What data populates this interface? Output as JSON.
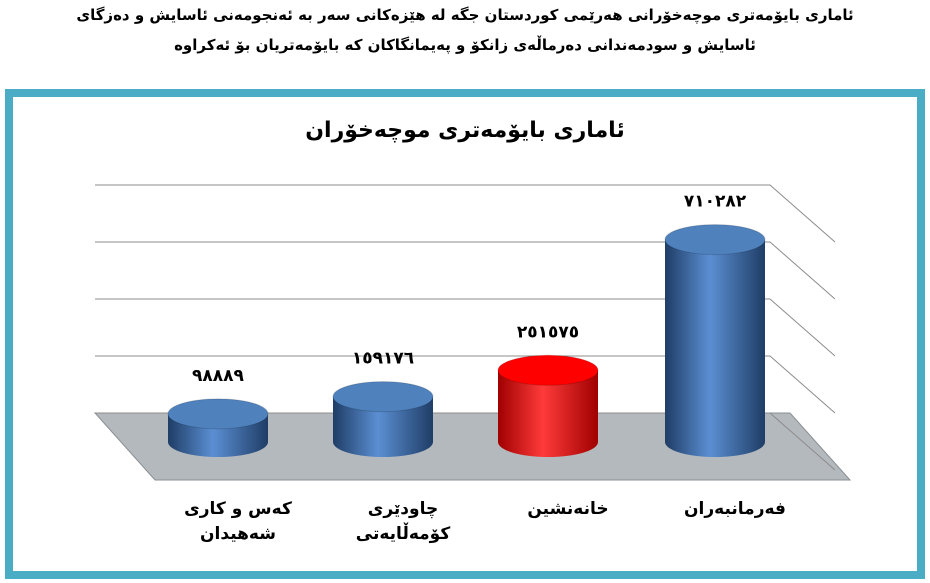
{
  "header": {
    "lines": [
      "ئاماری بایۆمەتری موچەخۆرانی هەرێمی کوردستان جگە لە هێزەکانی سەر بە ئەنجومەنی ئاسایش و دەزگای",
      "ئاسایش و سودمەندانی دەرماڵەی زانکۆ و پەیمانگاکان کە بایۆمەتریان بۆ ئەکراوە"
    ]
  },
  "chart_data": {
    "type": "bar3d",
    "title": "ئاماری بایۆمەتری موچەخۆران",
    "categories": [
      "کەس و کاری شەهیدان",
      "چاودێری کۆمەڵایەتی",
      "خانەنشین",
      "فەرمانبەران"
    ],
    "values": [
      98889,
      159176,
      251575,
      710282
    ],
    "value_labels": [
      "٩٨٨٨٩",
      "١٥٩١٧٦",
      "٢٥١٥٧٥",
      "٧١٠٢٨٢"
    ],
    "colors": [
      "#4f81bd",
      "#4f81bd",
      "#ff0000",
      "#4f81bd"
    ],
    "ylim": [
      0,
      800000
    ],
    "yticks": [
      0,
      200000,
      400000,
      600000,
      800000
    ],
    "grid": true
  }
}
